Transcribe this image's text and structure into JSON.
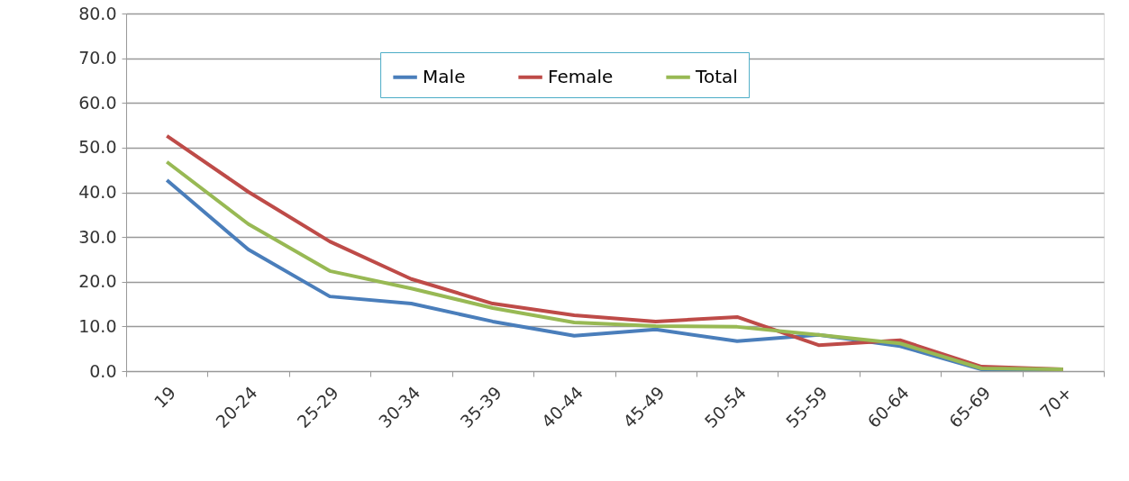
{
  "chart_data": {
    "type": "line",
    "categories": [
      "19",
      "20-24",
      "25-29",
      "30-34",
      "35-39",
      "40-44",
      "45-49",
      "50-54",
      "55-59",
      "60-64",
      "65-69",
      "70+"
    ],
    "series": [
      {
        "name": "Male",
        "color": "#4a7ebb",
        "values": [
          42.7,
          27.2,
          16.7,
          15.1,
          11.1,
          7.9,
          9.3,
          6.7,
          8.1,
          5.6,
          0.4,
          0.4
        ]
      },
      {
        "name": "Female",
        "color": "#be4b48",
        "values": [
          52.6,
          40.1,
          29.0,
          20.6,
          15.1,
          12.5,
          11.1,
          12.1,
          5.8,
          6.9,
          1.0,
          0.4
        ]
      },
      {
        "name": "Total",
        "color": "#98b954",
        "values": [
          46.8,
          32.9,
          22.4,
          18.5,
          14.1,
          10.9,
          10.1,
          9.9,
          8.1,
          6.2,
          0.6,
          0.4
        ]
      }
    ],
    "ylim": [
      0,
      80
    ],
    "yticks": [
      {
        "value": 0,
        "label": "0.0"
      },
      {
        "value": 10,
        "label": "10.0"
      },
      {
        "value": 20,
        "label": "20.0"
      },
      {
        "value": 30,
        "label": "30.0"
      },
      {
        "value": 40,
        "label": "40.0"
      },
      {
        "value": 50,
        "label": "50.0"
      },
      {
        "value": 60,
        "label": "60.0"
      },
      {
        "value": 70,
        "label": "70.0"
      },
      {
        "value": 80,
        "label": "80.0"
      }
    ],
    "grid": "y",
    "legend": "top",
    "marker": "none",
    "line_style": "solid"
  }
}
